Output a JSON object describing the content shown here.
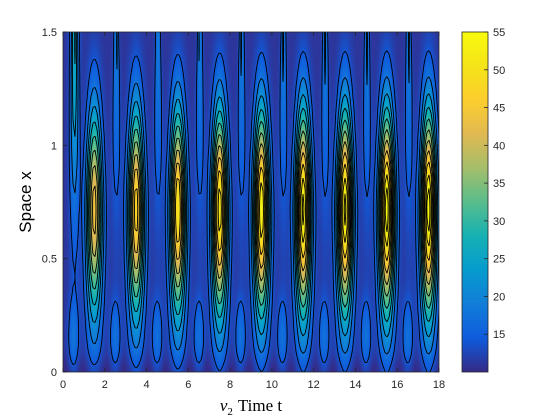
{
  "chart_data": {
    "type": "heatmap",
    "title": "",
    "xlabel_math": "v",
    "xlabel_math_sub": "2",
    "xlabel": "Time t",
    "ylabel": "Space x",
    "xlim": [
      0,
      18
    ],
    "ylim": [
      0,
      1.5
    ],
    "xticks": [
      0,
      2,
      4,
      6,
      8,
      10,
      12,
      14,
      16,
      18
    ],
    "xtick_labels": [
      "0",
      "2",
      "4",
      "6",
      "8",
      "10",
      "12",
      "14",
      "16",
      "18"
    ],
    "yticks": [
      0,
      0.5,
      1,
      1.5
    ],
    "ytick_labels": [
      "0",
      "0.5",
      "1",
      "1.5"
    ],
    "colorbar": {
      "colormap": "parula",
      "min": 10,
      "max": 55,
      "ticks": [
        15,
        20,
        25,
        30,
        35,
        40,
        45,
        50,
        55
      ],
      "tick_labels": [
        "15",
        "20",
        "25",
        "30",
        "35",
        "40",
        "45",
        "50",
        "55"
      ]
    },
    "contour_levels": [
      14,
      18,
      22,
      26,
      30,
      34,
      38,
      42,
      46,
      50,
      53
    ],
    "pattern": {
      "period": 2,
      "first_main_peak_t": 1.5,
      "first_thin_finger_t": 0.55,
      "main_peaks_t": [
        1.5,
        3.5,
        5.5,
        7.5,
        9.5,
        11.5,
        13.5,
        15.5,
        17.5
      ],
      "main_peaks_max": [
        44,
        48,
        50,
        52,
        53,
        54,
        54,
        55,
        55
      ],
      "peak_center_x": 0.72,
      "baseline_value": 11
    }
  }
}
